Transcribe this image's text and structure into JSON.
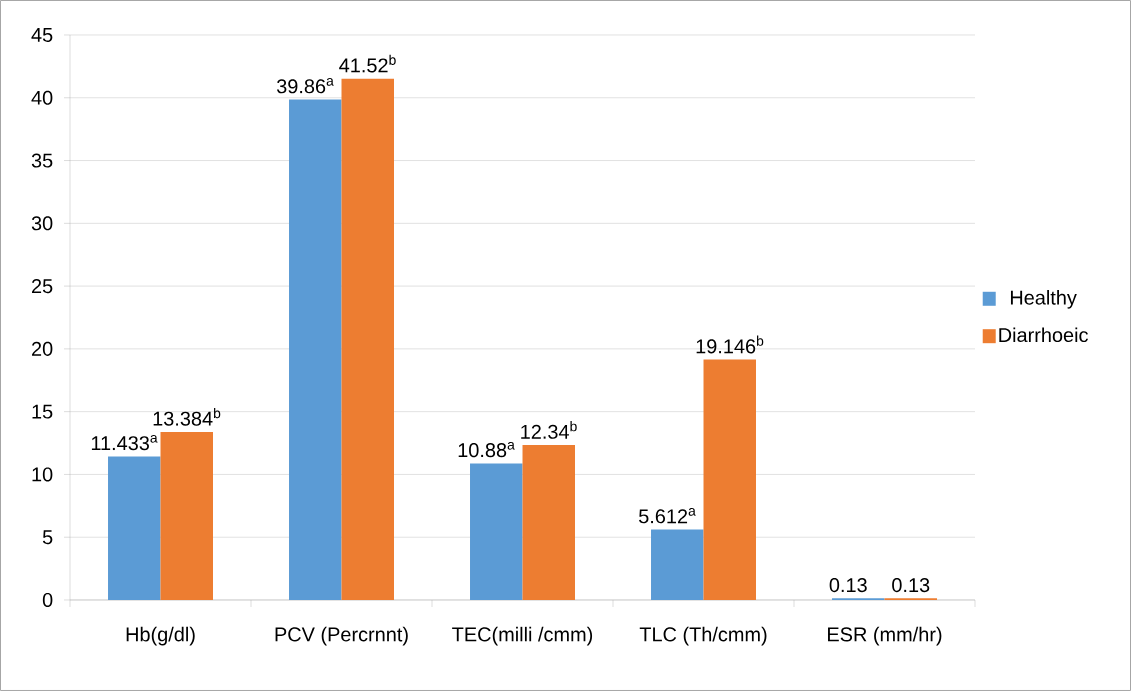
{
  "chart_data": {
    "type": "bar",
    "categories": [
      "Hb(g/dl)",
      "PCV (Percrnnt)",
      "TEC(milli /cmm)",
      "TLC (Th/cmm)",
      "ESR (mm/hr)"
    ],
    "series": [
      {
        "name": "Healthy",
        "color": "#5b9bd5",
        "values": [
          11.433,
          39.86,
          10.88,
          5.612,
          0.13
        ],
        "value_labels": [
          "11.433$^{a}$",
          "39.86$^{a}$",
          "10.88$^{a}$",
          "5.612$^{a}$",
          "0.13"
        ]
      },
      {
        "name": "Diarrhoeic",
        "color": "#ed7d31",
        "values": [
          13.384,
          41.52,
          12.34,
          19.146,
          0.13
        ],
        "value_labels": [
          "13.384$^{b}$",
          "41.52$^{b}$",
          "12.34$^{b}$",
          "19.146$^{b}$",
          "0.13"
        ]
      }
    ],
    "ylim": [
      0,
      45
    ],
    "yticks": [
      0,
      5,
      10,
      15,
      20,
      25,
      30,
      35,
      40,
      45
    ],
    "grid": "y",
    "legend": "right"
  }
}
